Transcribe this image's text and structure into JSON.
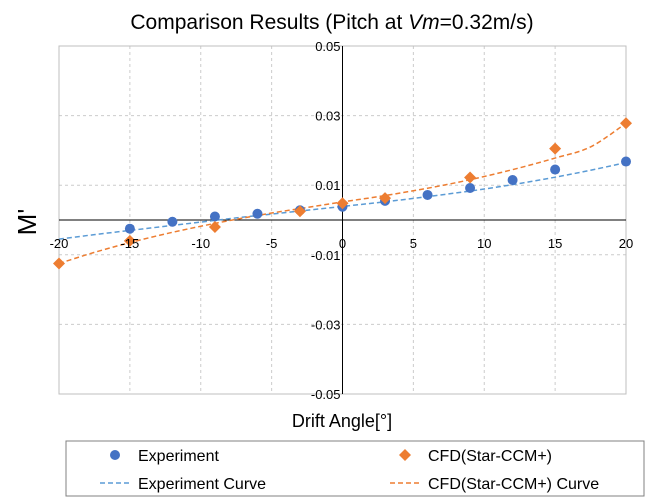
{
  "chart_data": {
    "type": "scatter",
    "title_prefix": "Comparison Results (Pitch at ",
    "title_var": "Vm",
    "title_suffix": "=0.32m/s)",
    "xlabel": "Drift Angle[°]",
    "ylabel": "M'",
    "xlim": [
      -20,
      20
    ],
    "ylim": [
      -0.05,
      0.05
    ],
    "x_ticks": [
      -20,
      -15,
      -10,
      -5,
      0,
      5,
      10,
      15,
      20
    ],
    "x_tick_labels": [
      "-20",
      "-15",
      "-10",
      "-5",
      "0",
      "5",
      "10",
      "15",
      "20"
    ],
    "y_ticks": [
      -0.05,
      -0.03,
      -0.01,
      0.01,
      0.03,
      0.05
    ],
    "y_tick_labels": [
      "-0.05",
      "-0.03",
      "-0.01",
      "0.01",
      "0.03",
      "0.05"
    ],
    "grid": true,
    "legend_position": "bottom",
    "series": [
      {
        "name": "Experiment",
        "kind": "points",
        "marker": "circle",
        "color": "#4472C4",
        "x": [
          -15,
          -12,
          -9,
          -6,
          -3,
          0,
          3,
          6,
          9,
          12,
          15,
          20
        ],
        "y": [
          -0.0025,
          -0.0005,
          0.001,
          0.0018,
          0.0028,
          0.0038,
          0.0055,
          0.0072,
          0.0092,
          0.0115,
          0.0145,
          0.0168
        ]
      },
      {
        "name": "CFD(Star-CCM+)",
        "kind": "points",
        "marker": "diamond",
        "color": "#ED7D31",
        "x": [
          -20,
          -15,
          -9,
          -3,
          0,
          3,
          9,
          15,
          20
        ],
        "y": [
          -0.0125,
          -0.006,
          -0.002,
          0.0025,
          0.0048,
          0.0063,
          0.0122,
          0.0205,
          0.0278
        ]
      },
      {
        "name": "Experiment Curve",
        "kind": "curve",
        "color": "#5B9BD5",
        "x": [
          -20,
          -17.5,
          -15,
          -12.5,
          -10,
          -7.5,
          -5,
          -2.5,
          0,
          2.5,
          5,
          7.5,
          10,
          12.5,
          15,
          17.5,
          20
        ],
        "y": [
          -0.0055,
          -0.0042,
          -0.003,
          -0.0018,
          -0.0006,
          0.0006,
          0.0017,
          0.0028,
          0.0039,
          0.005,
          0.0062,
          0.0075,
          0.0089,
          0.0105,
          0.0123,
          0.0143,
          0.0165
        ]
      },
      {
        "name": "CFD(Star-CCM+) Curve",
        "kind": "curve",
        "color": "#ED7D31",
        "x": [
          -20,
          -17.5,
          -15,
          -12.5,
          -10,
          -7.5,
          -5,
          -2.5,
          0,
          2.5,
          5,
          7.5,
          10,
          12.5,
          15,
          17.5,
          20
        ],
        "y": [
          -0.0125,
          -0.0093,
          -0.0065,
          -0.004,
          -0.0018,
          0.0002,
          0.002,
          0.0036,
          0.0052,
          0.0067,
          0.0084,
          0.0103,
          0.0125,
          0.015,
          0.0178,
          0.021,
          0.0278
        ]
      }
    ]
  }
}
